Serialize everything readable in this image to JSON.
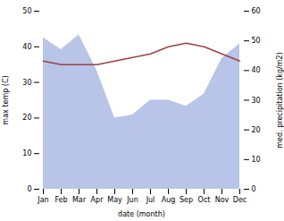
{
  "chart_data": {
    "type": "line",
    "categories": [
      "Jan",
      "Feb",
      "Mar",
      "Apr",
      "May",
      "Jun",
      "Jul",
      "Aug",
      "Sep",
      "Oct",
      "Nov",
      "Dec"
    ],
    "xlabel": "date (month)",
    "ylabel": "max temp (C)",
    "y2label": "med. precipitation (kg/m2)",
    "ylim": [
      0,
      50
    ],
    "yticks": [
      0,
      10,
      20,
      30,
      40,
      50
    ],
    "y2lim": [
      0,
      60
    ],
    "y2ticks": [
      0,
      10,
      20,
      30,
      40,
      50,
      60
    ],
    "grid": false,
    "series": [
      {
        "type": "line",
        "color": "#a04040",
        "values": [
          36,
          35,
          35,
          35,
          36,
          37,
          38,
          40,
          41,
          40,
          38,
          36
        ]
      },
      {
        "type": "area",
        "axis": "y2",
        "color": "#b8c4e8",
        "values": [
          51,
          47,
          52,
          40,
          24,
          25,
          30,
          30,
          28,
          32,
          44,
          49
        ]
      }
    ]
  }
}
